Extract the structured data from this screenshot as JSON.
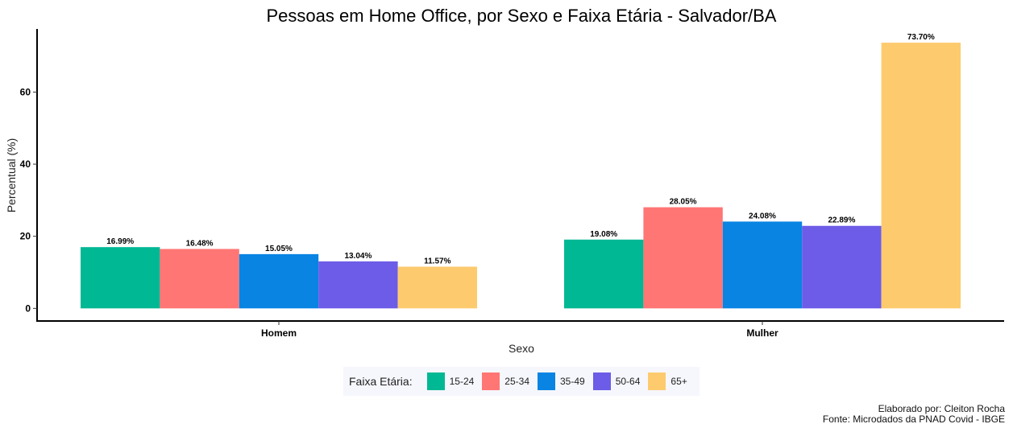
{
  "chart_data": {
    "type": "bar",
    "title": "Pessoas em Home Office, por Sexo e Faixa Etária - Salvador/BA",
    "xlabel": "Sexo",
    "ylabel": "Percentual (%)",
    "categories": [
      "Homem",
      "Mulher"
    ],
    "yticks": [
      0,
      20,
      40,
      60
    ],
    "ylim": [
      -3.5,
      77.5
    ],
    "grid": false,
    "legend_position": "bottom",
    "legend_title": "Faixa Etária:",
    "series": [
      {
        "name": "15-24",
        "color": "#00b894",
        "values": [
          16.99,
          19.08
        ],
        "labels": [
          "16.99%",
          "19.08%"
        ]
      },
      {
        "name": "25-34",
        "color": "#ff7675",
        "values": [
          16.48,
          28.05
        ],
        "labels": [
          "16.48%",
          "28.05%"
        ]
      },
      {
        "name": "35-49",
        "color": "#0984e3",
        "values": [
          15.05,
          24.08
        ],
        "labels": [
          "15.05%",
          "24.08%"
        ]
      },
      {
        "name": "50-64",
        "color": "#6c5ce7",
        "values": [
          13.04,
          22.89
        ],
        "labels": [
          "13.04%",
          "22.89%"
        ]
      },
      {
        "name": "65+",
        "color": "#fdcb6e",
        "values": [
          11.57,
          73.7
        ],
        "labels": [
          "11.57%",
          "73.70%"
        ]
      }
    ]
  },
  "caption": {
    "line1": "Elaborado por: Cleiton Rocha",
    "line2": "Fonte: Microdados da PNAD Covid - IBGE"
  }
}
